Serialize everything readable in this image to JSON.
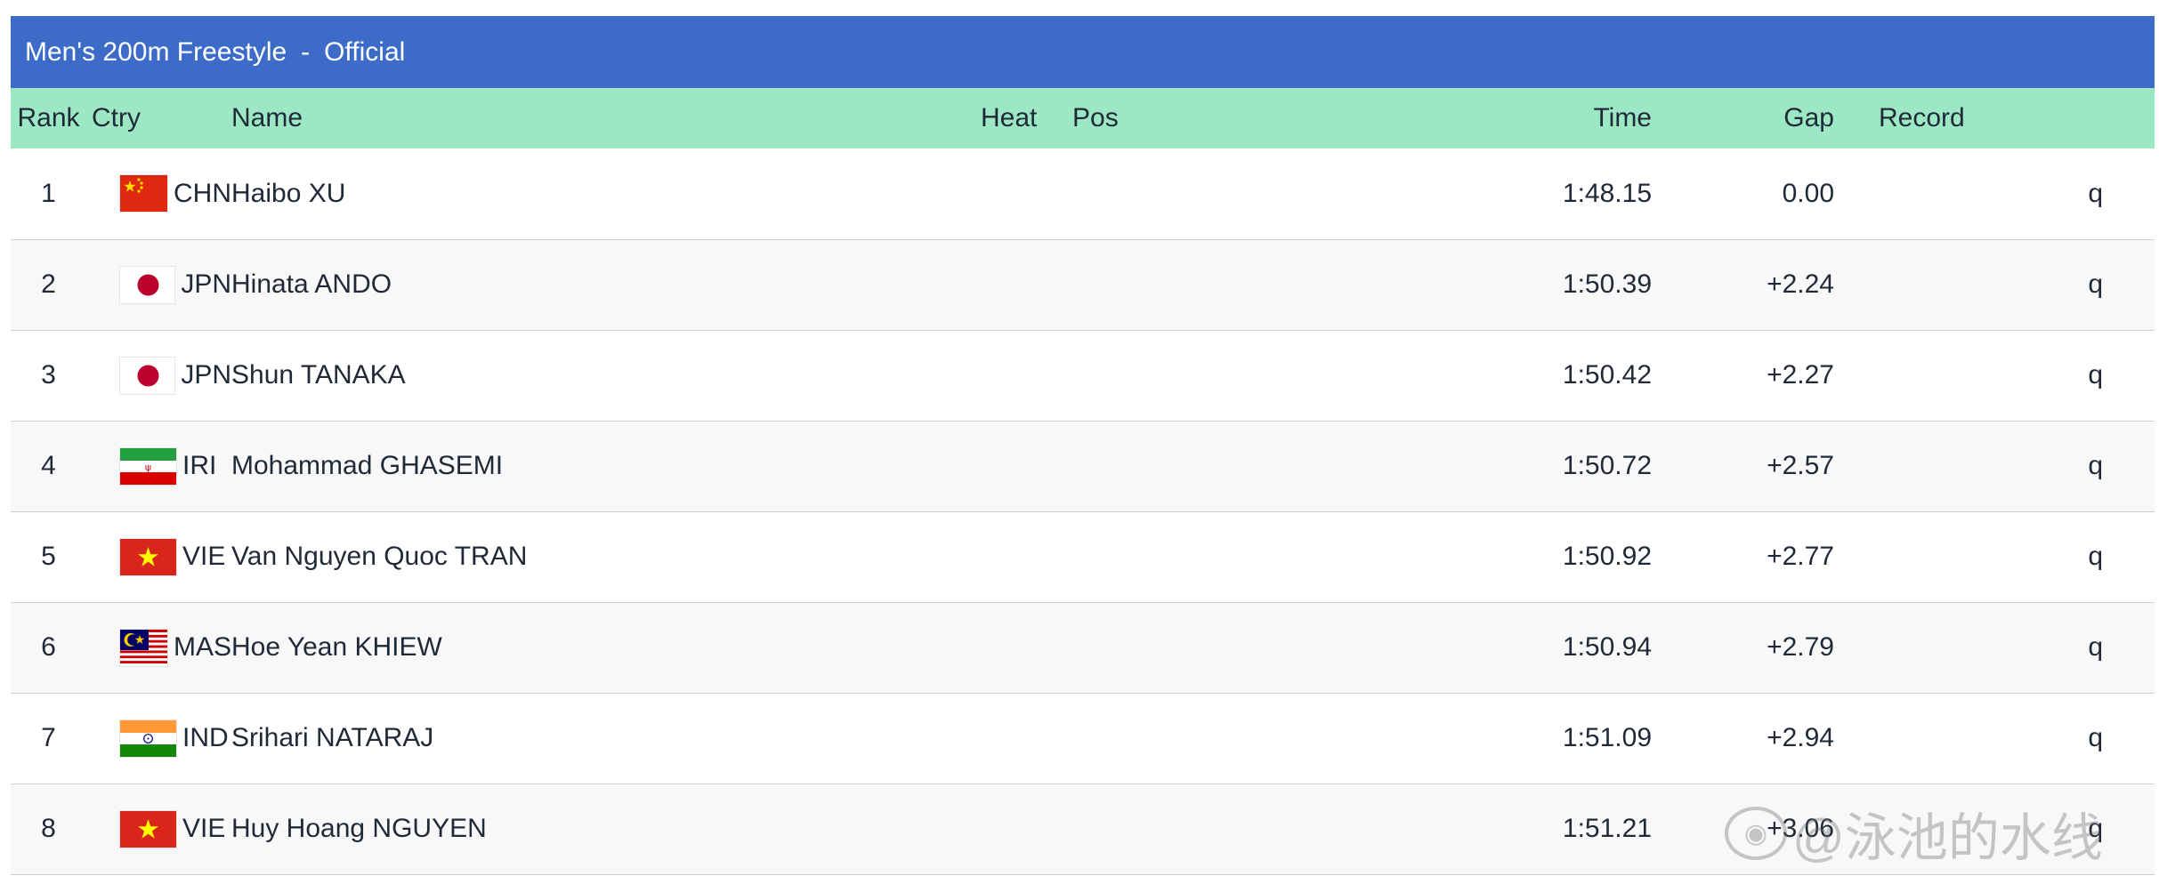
{
  "title": {
    "event": "Men's 200m Freestyle",
    "separator": "-",
    "status": "Official"
  },
  "columns": {
    "rank": "Rank",
    "ctry": "Ctry",
    "name": "Name",
    "heat": "Heat",
    "pos": "Pos",
    "time": "Time",
    "gap": "Gap",
    "record": "Record"
  },
  "rows": [
    {
      "rank": "1",
      "flag": "flag-china",
      "ctry": "CHN",
      "name": "Haibo XU",
      "time": "1:48.15",
      "gap": "0.00",
      "q": "q"
    },
    {
      "rank": "2",
      "flag": "flag-japan",
      "ctry": "JPN",
      "name": "Hinata ANDO",
      "time": "1:50.39",
      "gap": "+2.24",
      "q": "q"
    },
    {
      "rank": "3",
      "flag": "flag-japan",
      "ctry": "JPN",
      "name": "Shun TANAKA",
      "time": "1:50.42",
      "gap": "+2.27",
      "q": "q"
    },
    {
      "rank": "4",
      "flag": "flag-iran",
      "ctry": "IRI",
      "name": "Mohammad GHASEMI",
      "time": "1:50.72",
      "gap": "+2.57",
      "q": "q"
    },
    {
      "rank": "5",
      "flag": "flag-vietnam",
      "ctry": "VIE",
      "name": "Van Nguyen Quoc TRAN",
      "time": "1:50.92",
      "gap": "+2.77",
      "q": "q"
    },
    {
      "rank": "6",
      "flag": "flag-malaysia",
      "ctry": "MAS",
      "name": "Hoe Yean KHIEW",
      "time": "1:50.94",
      "gap": "+2.79",
      "q": "q"
    },
    {
      "rank": "7",
      "flag": "flag-india",
      "ctry": "IND",
      "name": "Srihari NATARAJ",
      "time": "1:51.09",
      "gap": "+2.94",
      "q": "q"
    },
    {
      "rank": "8",
      "flag": "flag-vietnam",
      "ctry": "VIE",
      "name": "Huy Hoang NGUYEN",
      "time": "1:51.21",
      "gap": "+3.06",
      "q": "q"
    }
  ],
  "watermark": {
    "text": "@泳池的水线",
    "icon": "weibo-icon"
  },
  "colors": {
    "title_bar": "#3c6bc8",
    "header_row": "#9de8c4"
  }
}
